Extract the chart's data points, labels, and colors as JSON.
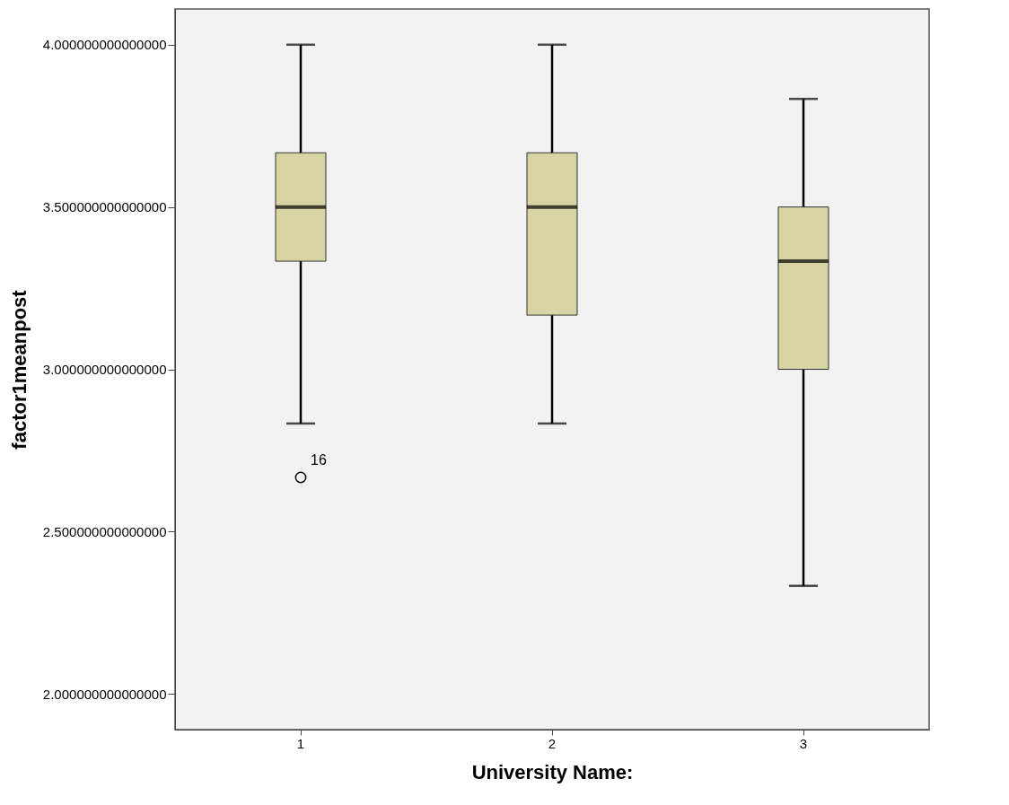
{
  "chart_data": {
    "type": "box",
    "xlabel": "University Name:",
    "ylabel": "factor1meanpost",
    "categories": [
      "1",
      "2",
      "3"
    ],
    "series": [
      {
        "color": "#d8d3a3",
        "boxes": [
          {
            "low": 2.833,
            "q1": 3.333,
            "median": 3.5,
            "q3": 3.667,
            "high": 4.0,
            "outliers": [
              2.667
            ]
          },
          {
            "low": 2.833,
            "q1": 3.167,
            "median": 3.5,
            "q3": 3.667,
            "high": 4.0
          },
          {
            "low": 2.333,
            "q1": 3.0,
            "median": 3.333,
            "q3": 3.5,
            "high": 3.833
          }
        ]
      }
    ],
    "ylim": [
      1.89,
      4.11
    ],
    "yticks": [
      {
        "value": 2,
        "label": "2.000000000000000"
      },
      {
        "value": 2.5,
        "label": "2.500000000000000"
      },
      {
        "value": 3,
        "label": "3.000000000000000"
      },
      {
        "value": 3.5,
        "label": "3.500000000000000"
      },
      {
        "value": 4,
        "label": "4.000000000000000"
      }
    ],
    "annotations": [
      "16"
    ],
    "grid": false
  }
}
